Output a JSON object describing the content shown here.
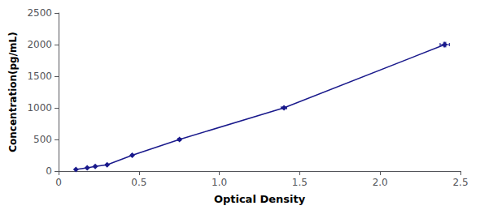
{
  "chart_data": {
    "type": "line",
    "x": [
      0.108,
      0.178,
      0.228,
      0.302,
      0.458,
      0.752,
      1.402,
      2.402
    ],
    "values": [
      25,
      50,
      75,
      100,
      250,
      500,
      1000,
      2000
    ],
    "xerr": [
      0.001296,
      0.002136,
      0.002736,
      0.003624,
      0.005496,
      0.009024,
      0.016824,
      0.028824
    ],
    "yerr": [
      0.45,
      0.9,
      1.35,
      1.8,
      4.5,
      9,
      18,
      36
    ],
    "color": "#1a1a8c",
    "marker": "diamond",
    "xlabel": "Optical Density",
    "ylabel": "Concentration(pg/mL)",
    "xlim": [
      0,
      2.5
    ],
    "ylim": [
      0,
      2500
    ],
    "xticks": [
      0,
      0.5,
      {
        "value": 1.0,
        "label": "1.0"
      },
      1.5,
      {
        "value": 2.0,
        "label": "2.0"
      },
      2.5
    ],
    "yticks": [
      0,
      500,
      1000,
      1500,
      2000,
      2500
    ],
    "grid": false
  }
}
